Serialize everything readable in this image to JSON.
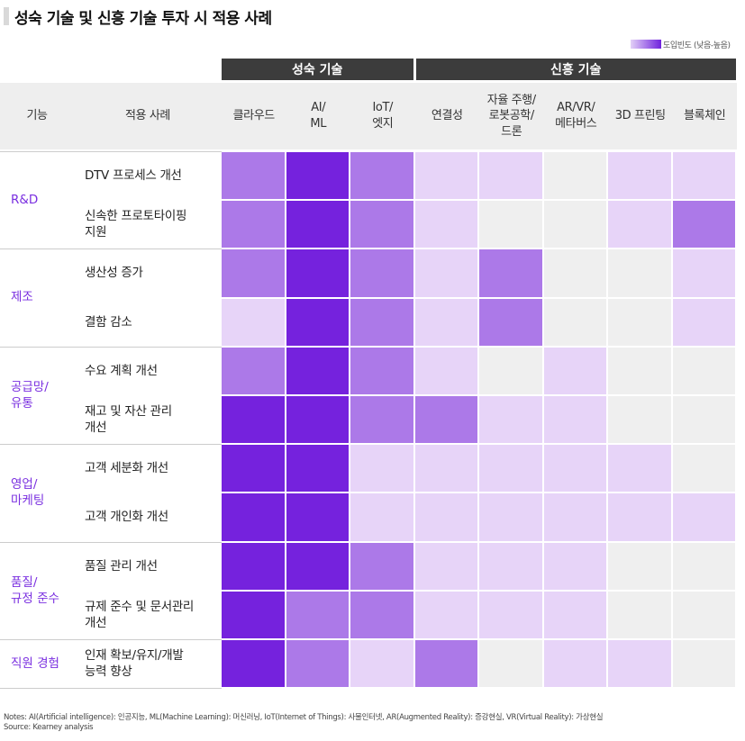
{
  "title": "성숙 기술 및 신흥 기술 투자 시 적용 사례",
  "legend": {
    "label": "도입빈도 (낮음-높음)",
    "gradient": [
      "#e2d0f7",
      "#7022dd"
    ]
  },
  "header": {
    "function": "기능",
    "use_case": "적용 사례"
  },
  "groups": [
    {
      "label": "성숙 기술",
      "span": [
        0,
        2
      ]
    },
    {
      "label": "신흥 기술",
      "span": [
        3,
        7
      ]
    }
  ],
  "scale_colors": [
    "#efefef",
    "#e7d4f8",
    "#ac79e8",
    "#7522dd"
  ],
  "chart_data": {
    "type": "heatmap",
    "title": "성숙 기술 및 신흥 기술 투자 시 적용 사례",
    "legend": "도입빈도 (낮음-높음)",
    "scale": "0 = 없음, 1 = 낮음, 2 = 중간, 3 = 높음",
    "columns": [
      "클라우드",
      "AI/\nML",
      "IoT/\n엣지",
      "연결성",
      "자율 주행/\n로봇공학/\n드론",
      "AR/VR/\n메타버스",
      "3D 프린팅",
      "블록체인"
    ],
    "functions": [
      {
        "label": "R&D",
        "rows": [
          0,
          1
        ]
      },
      {
        "label": "제조",
        "rows": [
          2,
          3
        ]
      },
      {
        "label": "공급망/\n유통",
        "rows": [
          4,
          5
        ]
      },
      {
        "label": "영업/\n마케팅",
        "rows": [
          6,
          7
        ]
      },
      {
        "label": "품질/\n규정 준수",
        "rows": [
          8,
          9
        ]
      },
      {
        "label": "직원 경험",
        "rows": [
          10,
          10
        ]
      }
    ],
    "rows": [
      {
        "label": "DTV 프로세스 개선",
        "values": [
          2,
          3,
          2,
          1,
          1,
          0,
          1,
          1
        ]
      },
      {
        "label": "신속한 프로토타이핑\n지원",
        "values": [
          2,
          3,
          2,
          1,
          0,
          0,
          1,
          2
        ]
      },
      {
        "label": "생산성 증가",
        "values": [
          2,
          3,
          2,
          1,
          2,
          0,
          0,
          1
        ]
      },
      {
        "label": "결함 감소",
        "values": [
          1,
          3,
          2,
          1,
          2,
          0,
          0,
          1
        ]
      },
      {
        "label": "수요 계획 개선",
        "values": [
          2,
          3,
          2,
          1,
          0,
          1,
          0,
          0
        ]
      },
      {
        "label": "재고 및 자산 관리\n개선",
        "values": [
          3,
          3,
          2,
          2,
          1,
          1,
          0,
          0
        ]
      },
      {
        "label": "고객 세분화 개선",
        "values": [
          3,
          3,
          1,
          1,
          1,
          1,
          1,
          0
        ]
      },
      {
        "label": "고객 개인화 개선",
        "values": [
          3,
          3,
          1,
          1,
          1,
          1,
          1,
          1
        ]
      },
      {
        "label": "품질 관리 개선",
        "values": [
          3,
          3,
          2,
          1,
          1,
          1,
          0,
          0
        ]
      },
      {
        "label": "규제 준수 및 문서관리\n개선",
        "values": [
          3,
          2,
          2,
          1,
          1,
          1,
          0,
          0
        ]
      },
      {
        "label": "인재 확보/유지/개발\n능력 향상",
        "values": [
          3,
          2,
          1,
          2,
          0,
          1,
          1,
          0
        ]
      }
    ]
  },
  "notes": [
    "Notes: AI(Artificial intelligence): 인공지능, ML(Machine Learning): 머신러닝, IoT(Internet of Things): 사물인터넷, AR(Augmented Reality): 증강현실, VR(Virtual Reality): 가상현실",
    "Source: Kearney analysis"
  ]
}
